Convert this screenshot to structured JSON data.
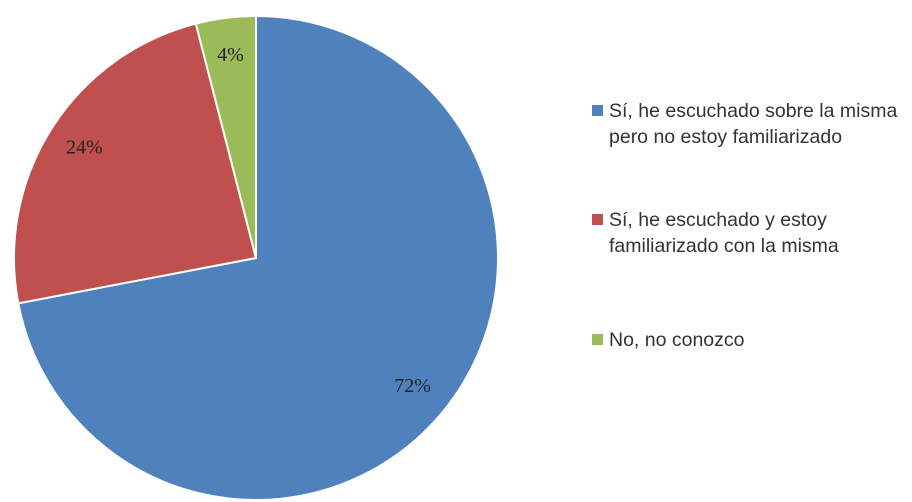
{
  "chart_data": {
    "type": "pie",
    "categories": [
      "Sí, he escuchado sobre la misma pero no estoy familiarizado",
      "Sí, he escuchado y estoy familiarizado con la misma",
      "No, no conozco"
    ],
    "values": [
      72,
      24,
      4
    ],
    "value_labels": [
      "72%",
      "24%",
      "4%"
    ],
    "colors": [
      "#4f81bd",
      "#c0504d",
      "#9bbb59"
    ],
    "legend": "right"
  }
}
